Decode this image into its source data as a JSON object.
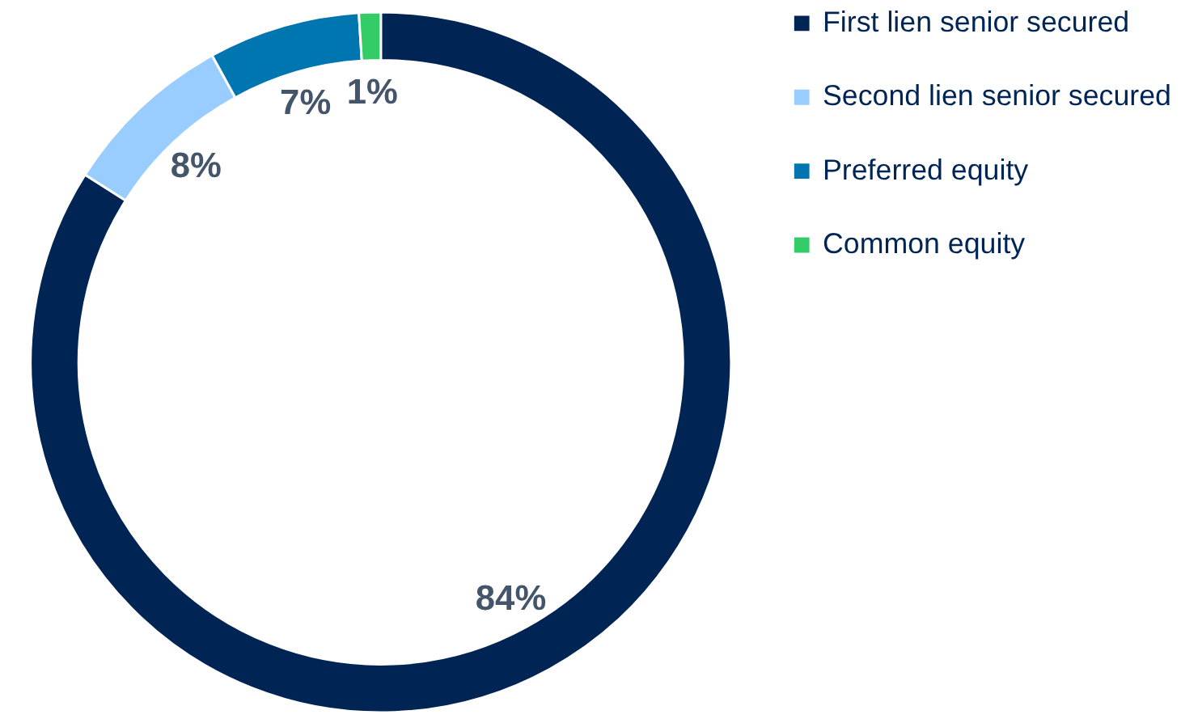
{
  "chart_data": {
    "type": "donut",
    "categories": [
      "First lien senior secured",
      "Second lien senior secured",
      "Preferred equity",
      "Common equity"
    ],
    "values": [
      84,
      8,
      7,
      1
    ],
    "colors": [
      "#002554",
      "#99ccff",
      "#0076b1",
      "#33cc66"
    ],
    "value_labels": [
      "84%",
      "8%",
      "7%",
      "1%"
    ],
    "legend": "right"
  }
}
